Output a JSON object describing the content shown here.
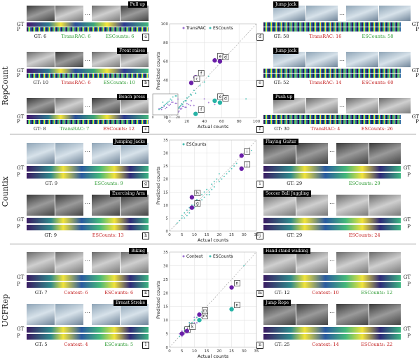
{
  "sections": {
    "repcount": "RepCount",
    "countix": "Countix",
    "ucfrep": "UCFRep"
  },
  "row_labels": {
    "gt": "GT",
    "p": "P"
  },
  "panels": {
    "pull_up": {
      "title": "Pull up",
      "gt": "GT: 6",
      "a": "TransRAC: 6",
      "b": "ESCounts: 6",
      "tag": "a"
    },
    "front_raises": {
      "title": "Front raises",
      "gt": "GT: 10",
      "a": "TransRAC: 6",
      "b": "ESCounts: 10",
      "tag": "b"
    },
    "bench_press": {
      "title": "Bench press",
      "gt": "GT: 8",
      "a": "TransRAC: 7",
      "b": "ESCounts: 12",
      "tag": "c"
    },
    "jump_jack_1": {
      "title": "Jump jack",
      "gt": "GT: 58",
      "a": "TransRAC: 16",
      "b": "ESCounts: 58",
      "tag": "d"
    },
    "jump_jack_2": {
      "title": "Jump jack",
      "gt": "GT: 52",
      "a": "TransRAC: 14",
      "b": "ESCounts: 60",
      "tag": "e"
    },
    "push_up": {
      "title": "Push up",
      "gt": "GT: 30",
      "a": "TransRAC: 4",
      "b": "ESCounts: 26",
      "tag": "f"
    },
    "jumping_jacks": {
      "title": "Jumping Jacks",
      "gt": "GT: 9",
      "b": "ESCounts: 9",
      "tag": "g"
    },
    "exercising_arm": {
      "title": "Exercising Arm",
      "gt": "GT: 9",
      "b": "ESCounts: 13",
      "tag": "h"
    },
    "playing_guitar": {
      "title": "Playing Guitar",
      "gt": "GT: 29",
      "b": "ESCounts: 29",
      "tag": "i"
    },
    "soccer_ball": {
      "title": "Soccer Ball Juggling",
      "gt": "GT: 29",
      "b": "ESCounts: 24",
      "tag": "j"
    },
    "biking": {
      "title": "Biking",
      "gt": "GT: 7",
      "a": "Context: 6",
      "b": "ESCounts: 6",
      "tag": "k"
    },
    "breast_stroke": {
      "title": "Breast Stroke",
      "gt": "GT: 5",
      "a": "Context: 4",
      "b": "ESCounts: 5",
      "tag": "l"
    },
    "hand_stand": {
      "title": "Hand stand walking",
      "gt": "GT: 12",
      "a": "Context: 10",
      "b": "ESCounts: 12",
      "tag": "m"
    },
    "jump_rope": {
      "title": "Jump Rope",
      "gt": "GT: 25",
      "a": "Context: 14",
      "b": "ESCounts: 22",
      "tag": "n"
    }
  },
  "colors": {
    "transrac": "#9b6fd1",
    "escounts": "#3fbcb0",
    "purple_dot": "#6a1fa8",
    "teal_dot": "#27b3a6"
  },
  "chart_data": [
    {
      "type": "scatter",
      "title": "",
      "xlabel": "Actual counts",
      "ylabel": "Predicted counts",
      "xlim": [
        0,
        100
      ],
      "ylim": [
        0,
        100
      ],
      "xticks": [
        0,
        20,
        40,
        60,
        80,
        100
      ],
      "yticks": [
        0,
        20,
        40,
        60,
        80,
        100
      ],
      "series": [
        {
          "name": "TransRAC",
          "x": [
            6,
            10,
            8,
            58,
            52,
            30,
            12,
            15,
            20,
            25,
            18,
            9,
            40,
            35,
            14,
            22,
            5,
            11,
            28,
            16,
            45,
            7,
            13,
            19,
            24
          ],
          "y": [
            6,
            6,
            7,
            16,
            14,
            4,
            10,
            12,
            15,
            18,
            11,
            8,
            20,
            9,
            10,
            14,
            6,
            7,
            13,
            12,
            16,
            5,
            9,
            11,
            13
          ]
        },
        {
          "name": "ESCounts",
          "x": [
            6,
            10,
            8,
            58,
            52,
            30,
            12,
            15,
            20,
            25,
            18,
            9,
            40,
            35,
            14,
            22,
            5,
            11,
            28,
            16,
            45,
            7,
            13,
            19,
            24,
            88
          ],
          "y": [
            6,
            10,
            12,
            58,
            60,
            26,
            12,
            14,
            21,
            24,
            18,
            9,
            38,
            34,
            15,
            22,
            5,
            11,
            29,
            17,
            44,
            7,
            13,
            18,
            25,
            20
          ]
        }
      ],
      "highlights": [
        {
          "label": "e",
          "series": "TransRAC",
          "x": 52,
          "y": 61
        },
        {
          "label": "d",
          "series": "TransRAC",
          "x": 58,
          "y": 60
        },
        {
          "label": "f",
          "series": "TransRAC",
          "x": 30,
          "y": 43
        },
        {
          "label": "c",
          "series": "TransRAC",
          "x": 25,
          "y": 37
        },
        {
          "label": "e",
          "series": "ESCounts",
          "x": 52,
          "y": 18
        },
        {
          "label": "d",
          "series": "ESCounts",
          "x": 58,
          "y": 16
        },
        {
          "label": "f",
          "series": "ESCounts",
          "x": 30,
          "y": 4
        }
      ],
      "inset": {
        "xlim": [
          0,
          20
        ],
        "ylim": [
          0,
          20
        ],
        "xticks": [
          0,
          10,
          20
        ],
        "yticks": [
          0,
          10,
          20
        ]
      }
    },
    {
      "type": "scatter",
      "title": "",
      "xlabel": "Actual counts",
      "ylabel": "Predicted counts",
      "xlim": [
        0,
        35
      ],
      "ylim": [
        0,
        35
      ],
      "xticks": [
        0,
        5,
        10,
        15,
        20,
        25,
        30,
        35
      ],
      "yticks": [
        0,
        5,
        10,
        15,
        20,
        25,
        30,
        35
      ],
      "series": [
        {
          "name": "ESCounts",
          "x": [
            9,
            9,
            29,
            29,
            5,
            6,
            7,
            8,
            10,
            11,
            12,
            13,
            14,
            15,
            16,
            17,
            18,
            19,
            20,
            22,
            24,
            26,
            4,
            3,
            6,
            8,
            10,
            12,
            14,
            16,
            18,
            20,
            5,
            7,
            9,
            11,
            13,
            15,
            17,
            21,
            23,
            25,
            27,
            31,
            33
          ],
          "y": [
            9,
            13,
            29,
            24,
            5,
            7,
            6,
            9,
            10,
            12,
            11,
            14,
            13,
            16,
            15,
            18,
            17,
            20,
            19,
            21,
            23,
            25,
            4,
            3,
            5,
            7,
            9,
            11,
            15,
            14,
            19,
            22,
            6,
            8,
            10,
            12,
            12,
            14,
            16,
            20,
            22,
            24,
            26,
            30,
            31
          ]
        }
      ],
      "highlights": [
        {
          "label": "i",
          "x": 29,
          "y": 29
        },
        {
          "label": "j",
          "x": 29,
          "y": 24
        },
        {
          "label": "h",
          "x": 9,
          "y": 13
        },
        {
          "label": "g",
          "x": 9,
          "y": 9
        }
      ]
    },
    {
      "type": "scatter",
      "title": "",
      "xlabel": "Actual counts",
      "ylabel": "Predicted counts",
      "xlim": [
        0,
        35
      ],
      "ylim": [
        0,
        35
      ],
      "xticks": [
        0,
        5,
        10,
        15,
        20,
        25,
        30,
        35
      ],
      "yticks": [
        0,
        5,
        10,
        15,
        20,
        25,
        30,
        35
      ],
      "series": [
        {
          "name": "Context",
          "x": [
            7,
            5,
            12,
            25,
            4,
            6,
            8,
            9,
            10,
            11,
            13,
            14,
            6,
            7,
            5,
            8,
            10,
            12
          ],
          "y": [
            6,
            4,
            10,
            14,
            5,
            6,
            7,
            8,
            9,
            9,
            11,
            12,
            5,
            7,
            6,
            9,
            11,
            10
          ]
        },
        {
          "name": "ESCounts",
          "x": [
            7,
            5,
            12,
            25,
            4,
            6,
            8,
            9,
            10,
            11,
            13,
            14,
            6,
            7,
            5,
            8,
            10,
            12,
            30
          ],
          "y": [
            6,
            5,
            12,
            22,
            4,
            6,
            8,
            9,
            10,
            11,
            13,
            14,
            7,
            6,
            5,
            9,
            10,
            12,
            30
          ]
        }
      ],
      "highlights": [
        {
          "label": "n",
          "series": "Context",
          "x": 25,
          "y": 22
        },
        {
          "label": "m",
          "series": "Context",
          "x": 12,
          "y": 12
        },
        {
          "label": "n",
          "series": "ESCounts",
          "x": 25,
          "y": 14
        },
        {
          "label": "m",
          "series": "ESCounts",
          "x": 12,
          "y": 10
        },
        {
          "label": "l",
          "series": "Context",
          "x": 5,
          "y": 5
        },
        {
          "label": "k",
          "series": "Context",
          "x": 7,
          "y": 6
        }
      ]
    }
  ]
}
